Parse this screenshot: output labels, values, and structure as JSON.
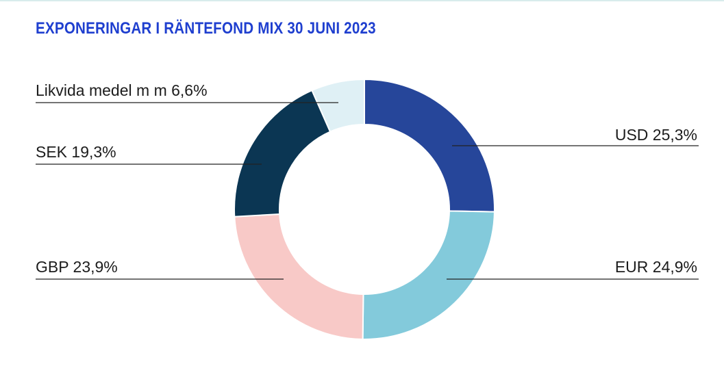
{
  "chart_data": {
    "type": "pie",
    "title": "EXPONERINGAR I RÄNTEFOND MIX 30 JUNI 2023",
    "series": [
      {
        "name": "",
        "slices": [
          {
            "key": "usd",
            "label": "USD 25,3%",
            "value": 25.3,
            "color": "#26469a"
          },
          {
            "key": "eur",
            "label": "EUR 24,9%",
            "value": 24.9,
            "color": "#83cadb"
          },
          {
            "key": "gbp",
            "label": "GBP 23,9%",
            "value": 23.9,
            "color": "#f8c9c7"
          },
          {
            "key": "sek",
            "label": "SEK 19,3%",
            "value": 19.3,
            "color": "#0b3653"
          },
          {
            "key": "likv",
            "label": "Likvida medel m m 6,6%",
            "value": 6.6,
            "color": "#dff0f5"
          }
        ]
      }
    ],
    "legend": "callout-labels"
  }
}
